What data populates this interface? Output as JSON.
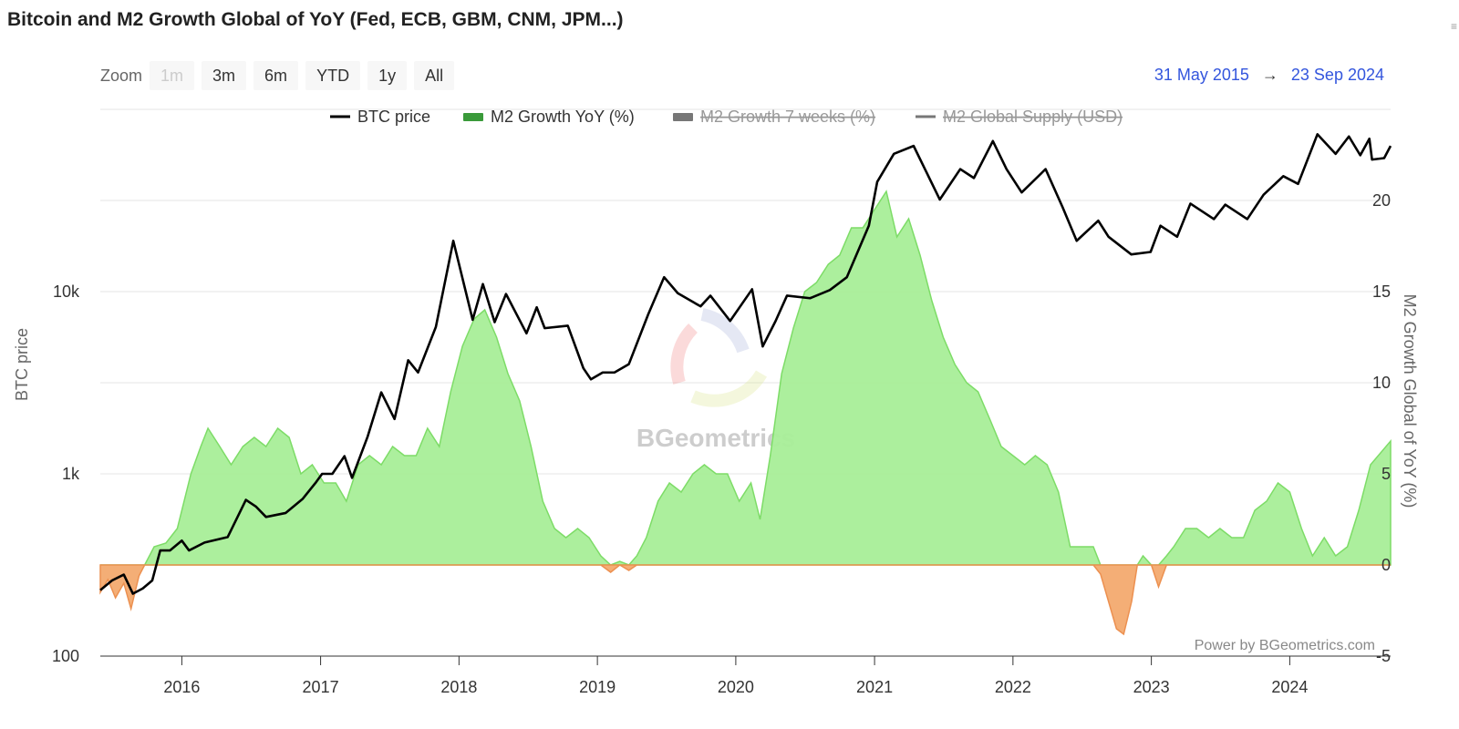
{
  "title": "Bitcoin and M2 Growth Global of YoY (Fed, ECB, GBM, CNM, JPM...)",
  "zoom": {
    "label": "Zoom",
    "buttons": [
      {
        "label": "1m",
        "enabled": false
      },
      {
        "label": "3m",
        "enabled": true
      },
      {
        "label": "6m",
        "enabled": true
      },
      {
        "label": "YTD",
        "enabled": true
      },
      {
        "label": "1y",
        "enabled": true
      },
      {
        "label": "All",
        "enabled": true
      }
    ]
  },
  "range": {
    "from": "31 May 2015",
    "arrow": "→",
    "to": "23 Sep 2024"
  },
  "corner_mark": "≡",
  "credit": "Power by BGeometrics.com",
  "watermark": "BGeometrics",
  "colors": {
    "btc": "#000000",
    "m2_positive": "#a8ee98",
    "m2_positive_line": "#7ddc67",
    "m2_negative": "#f4ae76",
    "m2_negative_line": "#ec9050",
    "legend_disabled": "#777777",
    "grid": "#e6e6e6",
    "range_text": "#3355dd"
  },
  "chart_data": {
    "type": "line",
    "title": "Bitcoin and M2 Growth Global of YoY (Fed, ECB, GBM, CNM, JPM...)",
    "x_axis": {
      "type": "date",
      "range": [
        "2015-05-31",
        "2024-09-23"
      ],
      "tick_labels": [
        "2016",
        "2017",
        "2018",
        "2019",
        "2020",
        "2021",
        "2022",
        "2023",
        "2024"
      ]
    },
    "y_axis_left": {
      "label": "BTC price",
      "scale": "log",
      "range": [
        100,
        100000
      ],
      "tick_labels": [
        "100",
        "1k",
        "10k"
      ]
    },
    "y_axis_right": {
      "label": "M2 Growth Global of YoY (%)",
      "range": [
        -5,
        25
      ],
      "tick_labels": [
        "-5",
        "0",
        "5",
        "10",
        "15",
        "20"
      ]
    },
    "grid": true,
    "legend_position": "top",
    "legend": [
      {
        "name": "BTC price",
        "visible": true,
        "symbol": "line"
      },
      {
        "name": "M2 Growth YoY (%)",
        "visible": true,
        "symbol": "area"
      },
      {
        "name": "M2 Growth 7 weeks (%)",
        "visible": false,
        "symbol": "area"
      },
      {
        "name": "M2 Global Supply (USD)",
        "visible": false,
        "symbol": "line"
      }
    ],
    "series": [
      {
        "name": "BTC price",
        "axis": "left",
        "type": "line",
        "points": [
          [
            "2015-05-31",
            230
          ],
          [
            "2015-07-01",
            260
          ],
          [
            "2015-08-01",
            280
          ],
          [
            "2015-08-25",
            220
          ],
          [
            "2015-09-20",
            235
          ],
          [
            "2015-10-15",
            260
          ],
          [
            "2015-11-05",
            380
          ],
          [
            "2015-12-01",
            380
          ],
          [
            "2016-01-01",
            430
          ],
          [
            "2016-01-20",
            380
          ],
          [
            "2016-03-01",
            420
          ],
          [
            "2016-05-01",
            450
          ],
          [
            "2016-06-18",
            720
          ],
          [
            "2016-07-15",
            660
          ],
          [
            "2016-08-10",
            580
          ],
          [
            "2016-10-01",
            610
          ],
          [
            "2016-11-15",
            730
          ],
          [
            "2016-12-20",
            900
          ],
          [
            "2017-01-05",
            1000
          ],
          [
            "2017-02-01",
            1000
          ],
          [
            "2017-03-05",
            1250
          ],
          [
            "2017-03-25",
            950
          ],
          [
            "2017-05-05",
            1600
          ],
          [
            "2017-06-10",
            2800
          ],
          [
            "2017-07-15",
            2000
          ],
          [
            "2017-08-20",
            4200
          ],
          [
            "2017-09-15",
            3600
          ],
          [
            "2017-11-01",
            6400
          ],
          [
            "2017-12-17",
            19000
          ],
          [
            "2018-02-06",
            7000
          ],
          [
            "2018-03-05",
            11000
          ],
          [
            "2018-04-05",
            6800
          ],
          [
            "2018-05-05",
            9700
          ],
          [
            "2018-06-28",
            5900
          ],
          [
            "2018-07-25",
            8200
          ],
          [
            "2018-08-15",
            6300
          ],
          [
            "2018-10-15",
            6500
          ],
          [
            "2018-11-25",
            3800
          ],
          [
            "2018-12-15",
            3300
          ],
          [
            "2019-01-15",
            3600
          ],
          [
            "2019-02-15",
            3600
          ],
          [
            "2019-03-25",
            4000
          ],
          [
            "2019-05-15",
            7500
          ],
          [
            "2019-06-26",
            12000
          ],
          [
            "2019-08-01",
            9800
          ],
          [
            "2019-09-30",
            8300
          ],
          [
            "2019-10-26",
            9500
          ],
          [
            "2019-12-17",
            6900
          ],
          [
            "2020-02-13",
            10300
          ],
          [
            "2020-03-12",
            5000
          ],
          [
            "2020-04-15",
            6900
          ],
          [
            "2020-05-15",
            9500
          ],
          [
            "2020-07-15",
            9200
          ],
          [
            "2020-09-05",
            10200
          ],
          [
            "2020-10-20",
            12000
          ],
          [
            "2020-12-17",
            23000
          ],
          [
            "2021-01-08",
            40000
          ],
          [
            "2021-02-21",
            57000
          ],
          [
            "2021-04-14",
            63000
          ],
          [
            "2021-06-22",
            32000
          ],
          [
            "2021-08-15",
            47000
          ],
          [
            "2021-09-20",
            42000
          ],
          [
            "2021-11-09",
            67000
          ],
          [
            "2021-12-15",
            47000
          ],
          [
            "2022-01-24",
            35000
          ],
          [
            "2022-03-28",
            47000
          ],
          [
            "2022-05-12",
            29000
          ],
          [
            "2022-06-18",
            19000
          ],
          [
            "2022-08-14",
            24500
          ],
          [
            "2022-09-10",
            20000
          ],
          [
            "2022-11-09",
            16000
          ],
          [
            "2022-12-30",
            16500
          ],
          [
            "2023-01-25",
            23000
          ],
          [
            "2023-03-10",
            20000
          ],
          [
            "2023-04-14",
            30400
          ],
          [
            "2023-06-15",
            25000
          ],
          [
            "2023-07-15",
            30000
          ],
          [
            "2023-09-11",
            25000
          ],
          [
            "2023-10-24",
            34000
          ],
          [
            "2023-12-15",
            43000
          ],
          [
            "2024-01-23",
            39000
          ],
          [
            "2024-03-14",
            73000
          ],
          [
            "2024-05-01",
            57000
          ],
          [
            "2024-06-05",
            71000
          ],
          [
            "2024-07-05",
            56000
          ],
          [
            "2024-07-29",
            69000
          ],
          [
            "2024-08-05",
            53000
          ],
          [
            "2024-09-06",
            54000
          ],
          [
            "2024-09-23",
            63000
          ]
        ]
      },
      {
        "name": "M2 Growth YoY (%)",
        "axis": "right",
        "type": "area",
        "points": [
          [
            "2015-05-31",
            -1.5
          ],
          [
            "2015-06-20",
            -0.8
          ],
          [
            "2015-07-10",
            -1.8
          ],
          [
            "2015-08-01",
            -1.0
          ],
          [
            "2015-08-20",
            -2.4
          ],
          [
            "2015-09-10",
            -0.6
          ],
          [
            "2015-09-25",
            0.0
          ],
          [
            "2015-10-20",
            1.0
          ],
          [
            "2015-11-20",
            1.2
          ],
          [
            "2015-12-20",
            2.0
          ],
          [
            "2016-01-25",
            5.0
          ],
          [
            "2016-02-20",
            6.5
          ],
          [
            "2016-03-10",
            7.5
          ],
          [
            "2016-04-10",
            6.5
          ],
          [
            "2016-05-10",
            5.5
          ],
          [
            "2016-06-10",
            6.5
          ],
          [
            "2016-07-10",
            7.0
          ],
          [
            "2016-08-10",
            6.5
          ],
          [
            "2016-09-10",
            7.5
          ],
          [
            "2016-10-10",
            7.0
          ],
          [
            "2016-11-10",
            5.0
          ],
          [
            "2016-12-10",
            5.5
          ],
          [
            "2017-01-10",
            4.5
          ],
          [
            "2017-02-10",
            4.5
          ],
          [
            "2017-03-10",
            3.5
          ],
          [
            "2017-04-10",
            5.5
          ],
          [
            "2017-05-10",
            6.0
          ],
          [
            "2017-06-10",
            5.5
          ],
          [
            "2017-07-10",
            6.5
          ],
          [
            "2017-08-10",
            6.0
          ],
          [
            "2017-09-10",
            6.0
          ],
          [
            "2017-10-10",
            7.5
          ],
          [
            "2017-11-10",
            6.5
          ],
          [
            "2017-12-10",
            9.5
          ],
          [
            "2018-01-10",
            12.0
          ],
          [
            "2018-02-10",
            13.5
          ],
          [
            "2018-03-10",
            14.0
          ],
          [
            "2018-04-10",
            12.5
          ],
          [
            "2018-05-10",
            10.5
          ],
          [
            "2018-06-10",
            9.0
          ],
          [
            "2018-07-10",
            6.5
          ],
          [
            "2018-08-10",
            3.5
          ],
          [
            "2018-09-10",
            2.0
          ],
          [
            "2018-10-10",
            1.5
          ],
          [
            "2018-11-10",
            2.0
          ],
          [
            "2018-12-10",
            1.5
          ],
          [
            "2019-01-10",
            0.5
          ],
          [
            "2019-02-05",
            -0.4
          ],
          [
            "2019-03-01",
            0.2
          ],
          [
            "2019-03-25",
            -0.3
          ],
          [
            "2019-04-15",
            0.5
          ],
          [
            "2019-05-10",
            1.5
          ],
          [
            "2019-06-10",
            3.5
          ],
          [
            "2019-07-10",
            4.5
          ],
          [
            "2019-08-10",
            4.0
          ],
          [
            "2019-09-10",
            5.0
          ],
          [
            "2019-10-10",
            5.5
          ],
          [
            "2019-11-10",
            5.0
          ],
          [
            "2019-12-10",
            5.0
          ],
          [
            "2020-01-10",
            3.5
          ],
          [
            "2020-02-10",
            4.5
          ],
          [
            "2020-03-05",
            2.5
          ],
          [
            "2020-04-01",
            6.0
          ],
          [
            "2020-05-01",
            10.5
          ],
          [
            "2020-06-01",
            13.0
          ],
          [
            "2020-07-01",
            15.0
          ],
          [
            "2020-08-01",
            15.5
          ],
          [
            "2020-09-01",
            16.5
          ],
          [
            "2020-10-01",
            17.0
          ],
          [
            "2020-11-01",
            18.5
          ],
          [
            "2020-12-01",
            18.5
          ],
          [
            "2021-01-01",
            19.5
          ],
          [
            "2021-02-01",
            20.5
          ],
          [
            "2021-03-01",
            18.0
          ],
          [
            "2021-04-01",
            19.0
          ],
          [
            "2021-05-01",
            17.0
          ],
          [
            "2021-06-01",
            14.5
          ],
          [
            "2021-07-01",
            12.5
          ],
          [
            "2021-08-01",
            11.0
          ],
          [
            "2021-09-01",
            10.0
          ],
          [
            "2021-10-01",
            9.5
          ],
          [
            "2021-11-01",
            8.0
          ],
          [
            "2021-12-01",
            6.5
          ],
          [
            "2022-01-01",
            6.0
          ],
          [
            "2022-02-01",
            5.5
          ],
          [
            "2022-03-01",
            6.0
          ],
          [
            "2022-04-01",
            5.5
          ],
          [
            "2022-05-01",
            4.0
          ],
          [
            "2022-06-01",
            1.0
          ],
          [
            "2022-07-01",
            1.0
          ],
          [
            "2022-08-01",
            1.0
          ],
          [
            "2022-08-20",
            -0.5
          ],
          [
            "2022-09-10",
            -2.0
          ],
          [
            "2022-10-01",
            -3.5
          ],
          [
            "2022-10-20",
            -3.8
          ],
          [
            "2022-11-10",
            -2.0
          ],
          [
            "2022-11-25",
            0.0
          ],
          [
            "2022-12-10",
            0.5
          ],
          [
            "2023-01-01",
            0.0
          ],
          [
            "2023-01-20",
            -1.2
          ],
          [
            "2023-02-10",
            0.5
          ],
          [
            "2023-03-01",
            1.0
          ],
          [
            "2023-04-01",
            2.0
          ],
          [
            "2023-05-01",
            2.0
          ],
          [
            "2023-06-01",
            1.5
          ],
          [
            "2023-07-01",
            2.0
          ],
          [
            "2023-08-01",
            1.5
          ],
          [
            "2023-09-01",
            1.5
          ],
          [
            "2023-10-01",
            3.0
          ],
          [
            "2023-11-01",
            3.5
          ],
          [
            "2023-12-01",
            4.5
          ],
          [
            "2024-01-01",
            4.0
          ],
          [
            "2024-02-01",
            2.0
          ],
          [
            "2024-03-01",
            0.5
          ],
          [
            "2024-04-01",
            1.5
          ],
          [
            "2024-05-01",
            0.5
          ],
          [
            "2024-06-01",
            1.0
          ],
          [
            "2024-07-01",
            3.0
          ],
          [
            "2024-08-01",
            5.5
          ],
          [
            "2024-09-23",
            6.8
          ]
        ]
      }
    ]
  }
}
